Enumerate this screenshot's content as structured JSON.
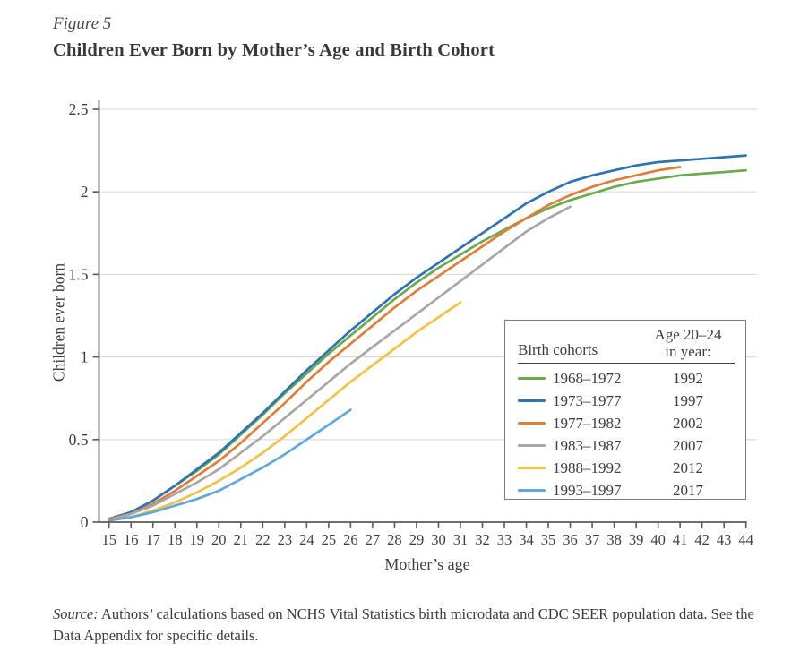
{
  "figure": {
    "label": "Figure 5",
    "title": "Children Ever Born by Mother’s Age and Birth Cohort"
  },
  "chart_data": {
    "type": "line",
    "title": "Children Ever Born by Mother’s Age and Birth Cohort",
    "xlabel": "Mother’s age",
    "ylabel": "Children ever born",
    "xlim": [
      15,
      44
    ],
    "ylim": [
      0,
      2.5
    ],
    "xticks": [
      15,
      16,
      17,
      18,
      19,
      20,
      21,
      22,
      23,
      24,
      25,
      26,
      27,
      28,
      29,
      30,
      31,
      32,
      33,
      34,
      35,
      36,
      37,
      38,
      39,
      40,
      41,
      42,
      43,
      44
    ],
    "ytick_labels": [
      "0",
      "0.5",
      "1",
      "1.5",
      "2",
      "2.5"
    ],
    "ytick_values": [
      0,
      0.5,
      1,
      1.5,
      2,
      2.5
    ],
    "grid": "horizontal",
    "legend": {
      "position": "inside-lower-right",
      "header_left": "Birth cohorts",
      "header_right_line1": "Age 20–24",
      "header_right_line2": "in year:"
    },
    "series": [
      {
        "name": "1968–1972",
        "age_20_24_in_year": "1992",
        "color": "#6BAA4D",
        "start_age": 15,
        "values": [
          0.02,
          0.06,
          0.13,
          0.22,
          0.31,
          0.41,
          0.53,
          0.65,
          0.78,
          0.9,
          1.02,
          1.13,
          1.24,
          1.35,
          1.45,
          1.54,
          1.62,
          1.7,
          1.77,
          1.84,
          1.9,
          1.95,
          1.99,
          2.03,
          2.06,
          2.08,
          2.1,
          2.11,
          2.12,
          2.13
        ]
      },
      {
        "name": "1973–1977",
        "age_20_24_in_year": "1997",
        "color": "#2E74B5",
        "start_age": 15,
        "values": [
          0.02,
          0.06,
          0.13,
          0.22,
          0.32,
          0.42,
          0.54,
          0.66,
          0.79,
          0.92,
          1.04,
          1.16,
          1.27,
          1.38,
          1.48,
          1.57,
          1.66,
          1.75,
          1.84,
          1.93,
          2.0,
          2.06,
          2.1,
          2.13,
          2.16,
          2.18,
          2.19,
          2.2,
          2.21,
          2.22
        ]
      },
      {
        "name": "1977–1982",
        "age_20_24_in_year": "2002",
        "color": "#E07E39",
        "start_age": 15,
        "values": [
          0.02,
          0.05,
          0.11,
          0.19,
          0.28,
          0.37,
          0.48,
          0.6,
          0.72,
          0.85,
          0.97,
          1.08,
          1.19,
          1.3,
          1.4,
          1.49,
          1.58,
          1.67,
          1.76,
          1.84,
          1.92,
          1.98,
          2.03,
          2.07,
          2.1,
          2.13,
          2.15
        ]
      },
      {
        "name": "1983–1987",
        "age_20_24_in_year": "2007",
        "color": "#A7A7A7",
        "start_age": 15,
        "values": [
          0.01,
          0.05,
          0.1,
          0.17,
          0.24,
          0.32,
          0.42,
          0.52,
          0.63,
          0.74,
          0.85,
          0.96,
          1.06,
          1.16,
          1.26,
          1.36,
          1.46,
          1.56,
          1.66,
          1.76,
          1.84,
          1.91
        ]
      },
      {
        "name": "1988–1992",
        "age_20_24_in_year": "2012",
        "color": "#F4C143",
        "start_age": 15,
        "values": [
          0.01,
          0.03,
          0.07,
          0.12,
          0.18,
          0.25,
          0.33,
          0.42,
          0.52,
          0.63,
          0.74,
          0.85,
          0.95,
          1.05,
          1.15,
          1.24,
          1.33
        ]
      },
      {
        "name": "1993–1997",
        "age_20_24_in_year": "2017",
        "color": "#5FA8DC",
        "start_age": 15,
        "values": [
          0.01,
          0.03,
          0.06,
          0.1,
          0.14,
          0.19,
          0.26,
          0.33,
          0.41,
          0.5,
          0.59,
          0.68
        ]
      }
    ]
  },
  "style_colors": {
    "axis": "#5a5a5a",
    "gridline": "#dcdcdc",
    "tick_text": "#3d3d3d"
  },
  "source": {
    "label": "Source:",
    "text": " Authors’ calculations based on NCHS Vital Statistics birth microdata and CDC SEER population data. See the Data Appendix for specific details."
  }
}
